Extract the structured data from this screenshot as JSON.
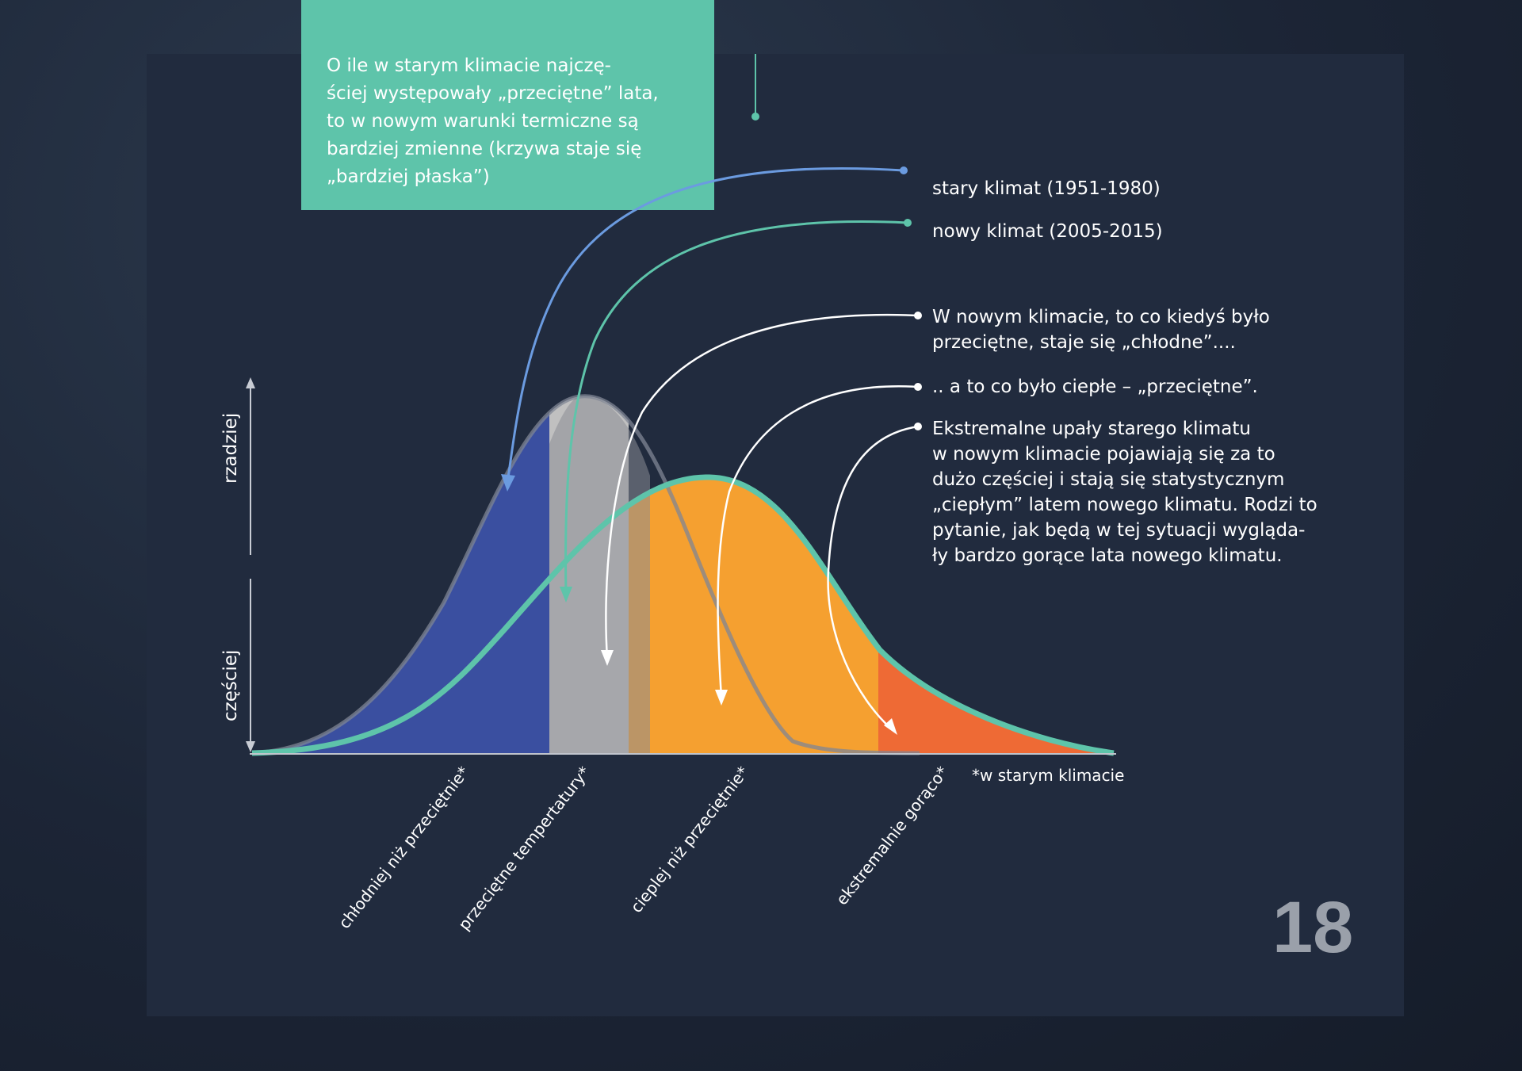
{
  "callout_text": "O ile w starym klimacie najczę-\nściej występowały „przeciętne” lata,\nto w nowym warunki termiczne są\nbardziej zmienne (krzywa staje się\n„bardziej płaska”)",
  "legend": {
    "old_climate": "stary klimat (1951-1980)",
    "new_climate": "nowy klimat (2005-2015)"
  },
  "notes": {
    "average_to_cold": "W nowym klimacie, to co kiedyś było\nprzeciętne, staje się „chłodne”....",
    "warm_to_average": ".. a to co było ciepłe – „przeciętne”.",
    "extreme": "Ekstremalne upały starego klimatu\nw nowym klimacie pojawiają się za to\ndużo częściej i stają się statystycznym\n„ciepłym” latem nowego klimatu. Rodzi to\npytanie, jak będą w tej sytuacji wygląda-\nły bardzo gorące lata nowego klimatu."
  },
  "axis": {
    "rare": "rzadziej",
    "frequent": "częściej"
  },
  "categories": [
    "chłodniej niż przeciętnie*",
    "przeciętne tempertatury*",
    "cieplej niż przeciętnie*",
    "ekstremalnie gorąco*"
  ],
  "footnote": "*w starym klimacie",
  "page_number": "18",
  "colors": {
    "panel": "#212b3e",
    "teal": "#5ec4aa",
    "old_curve": "#6b9be0",
    "cold": "#3a4fa0",
    "average": "#c0c0c0",
    "warm": "#f5a030",
    "hot": "#ee6a35"
  }
}
